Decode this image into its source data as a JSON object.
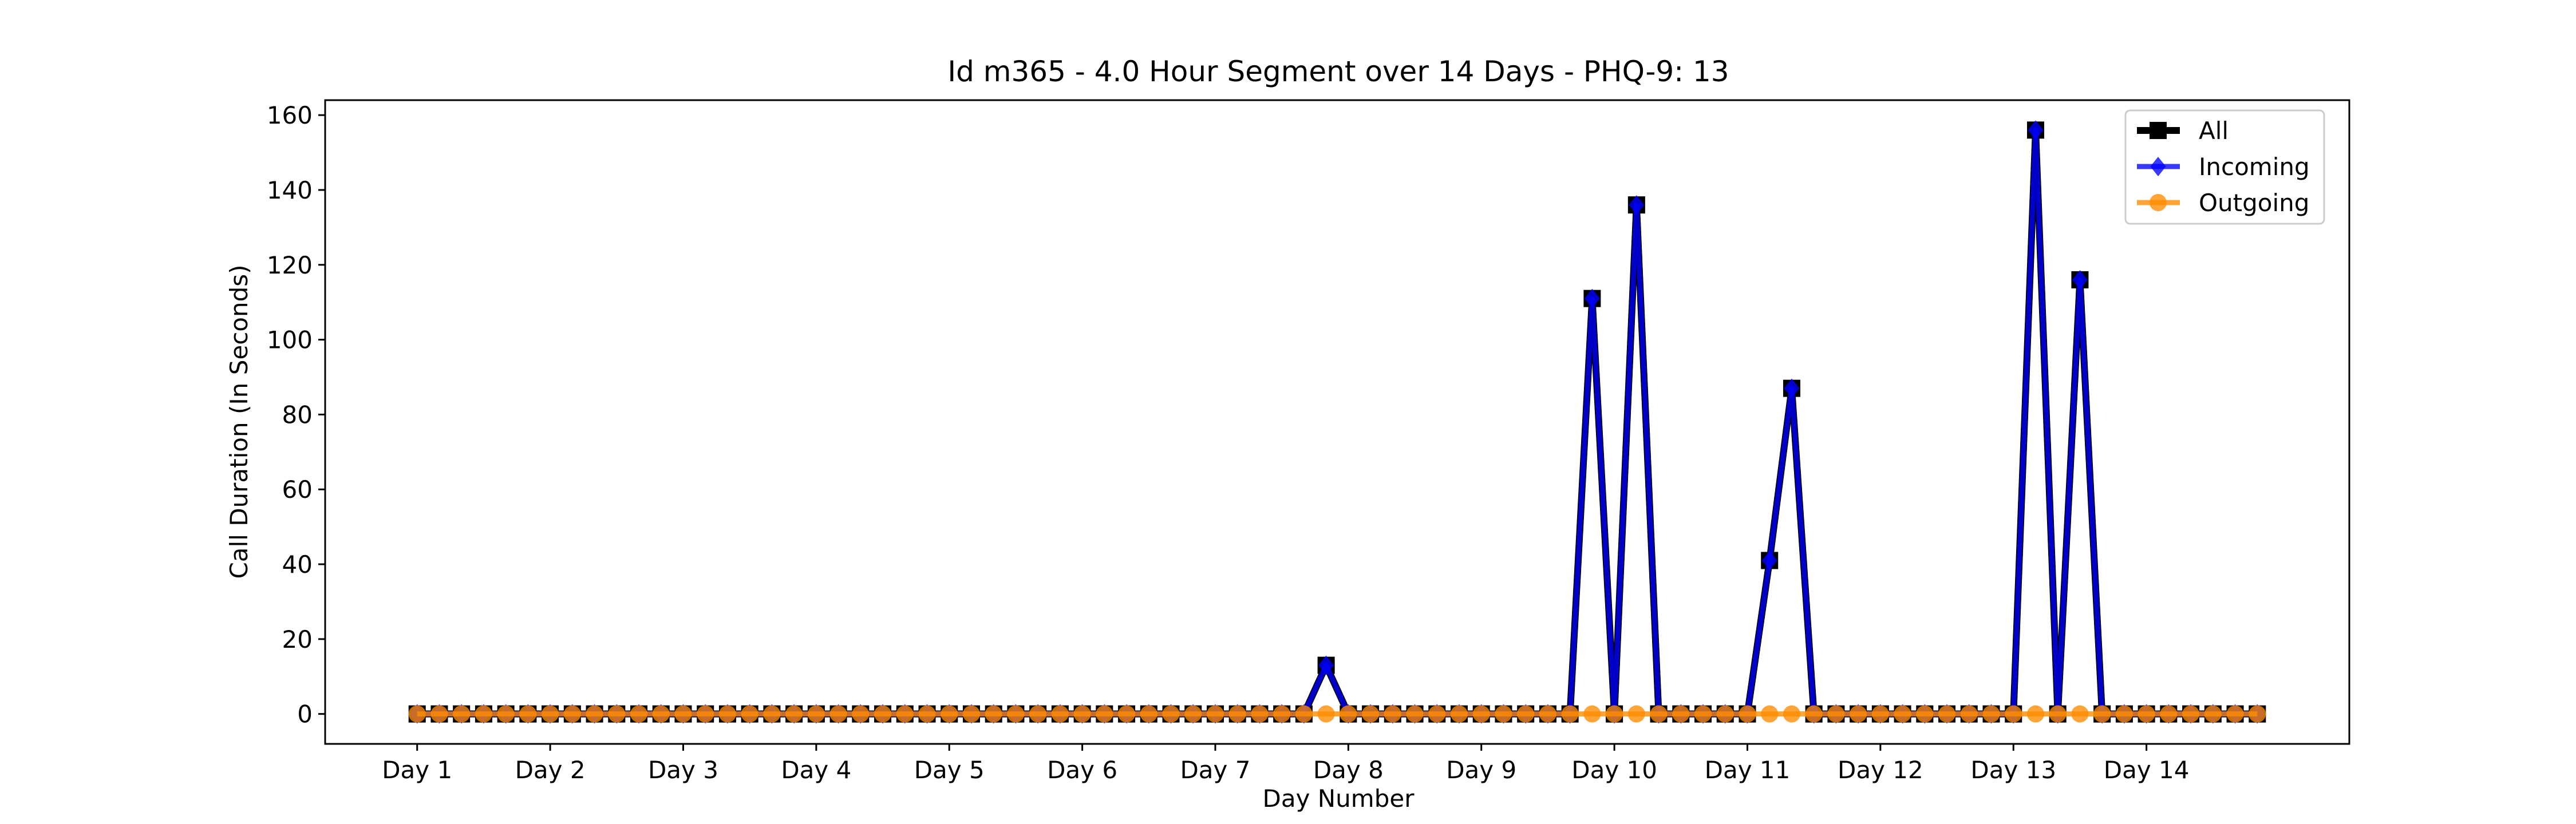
{
  "chart_data": {
    "type": "line",
    "title": "Id m365 - 4.0 Hour Segment over 14 Days - PHQ-9: 13",
    "xlabel": "Day Number",
    "ylabel": "Call Duration (In Seconds)",
    "xlim": [
      -4.15,
      87.15
    ],
    "ylim": [
      -8,
      164
    ],
    "yticks": [
      0,
      20,
      40,
      60,
      80,
      100,
      120,
      140,
      160
    ],
    "xticks": [
      {
        "x": 0,
        "label": "Day 1"
      },
      {
        "x": 6,
        "label": "Day 2"
      },
      {
        "x": 12,
        "label": "Day 3"
      },
      {
        "x": 18,
        "label": "Day 4"
      },
      {
        "x": 24,
        "label": "Day 5"
      },
      {
        "x": 30,
        "label": "Day 6"
      },
      {
        "x": 36,
        "label": "Day 7"
      },
      {
        "x": 42,
        "label": "Day 8"
      },
      {
        "x": 48,
        "label": "Day 9"
      },
      {
        "x": 54,
        "label": "Day 10"
      },
      {
        "x": 60,
        "label": "Day 11"
      },
      {
        "x": 66,
        "label": "Day 12"
      },
      {
        "x": 72,
        "label": "Day 13"
      },
      {
        "x": 78,
        "label": "Day 14"
      }
    ],
    "legend_position": "top-right",
    "series": [
      {
        "name": "All",
        "color": "#000000",
        "marker": "square",
        "values": [
          0,
          0,
          0,
          0,
          0,
          0,
          0,
          0,
          0,
          0,
          0,
          0,
          0,
          0,
          0,
          0,
          0,
          0,
          0,
          0,
          0,
          0,
          0,
          0,
          0,
          0,
          0,
          0,
          0,
          0,
          0,
          0,
          0,
          0,
          0,
          0,
          0,
          0,
          0,
          0,
          0,
          13,
          0,
          0,
          0,
          0,
          0,
          0,
          0,
          0,
          0,
          0,
          0,
          111,
          0,
          136,
          0,
          0,
          0,
          0,
          0,
          41,
          87,
          0,
          0,
          0,
          0,
          0,
          0,
          0,
          0,
          0,
          0,
          156,
          0,
          116,
          0,
          0,
          0,
          0,
          0,
          0,
          0,
          0
        ]
      },
      {
        "name": "Incoming",
        "color": "#0000ff",
        "marker": "diamond",
        "values": [
          0,
          0,
          0,
          0,
          0,
          0,
          0,
          0,
          0,
          0,
          0,
          0,
          0,
          0,
          0,
          0,
          0,
          0,
          0,
          0,
          0,
          0,
          0,
          0,
          0,
          0,
          0,
          0,
          0,
          0,
          0,
          0,
          0,
          0,
          0,
          0,
          0,
          0,
          0,
          0,
          0,
          13,
          0,
          0,
          0,
          0,
          0,
          0,
          0,
          0,
          0,
          0,
          0,
          111,
          0,
          136,
          0,
          0,
          0,
          0,
          0,
          41,
          87,
          0,
          0,
          0,
          0,
          0,
          0,
          0,
          0,
          0,
          0,
          156,
          0,
          116,
          0,
          0,
          0,
          0,
          0,
          0,
          0,
          0
        ]
      },
      {
        "name": "Outgoing",
        "color": "#ff8c00",
        "marker": "circle",
        "values": [
          0,
          0,
          0,
          0,
          0,
          0,
          0,
          0,
          0,
          0,
          0,
          0,
          0,
          0,
          0,
          0,
          0,
          0,
          0,
          0,
          0,
          0,
          0,
          0,
          0,
          0,
          0,
          0,
          0,
          0,
          0,
          0,
          0,
          0,
          0,
          0,
          0,
          0,
          0,
          0,
          0,
          0,
          0,
          0,
          0,
          0,
          0,
          0,
          0,
          0,
          0,
          0,
          0,
          0,
          0,
          0,
          0,
          0,
          0,
          0,
          0,
          0,
          0,
          0,
          0,
          0,
          0,
          0,
          0,
          0,
          0,
          0,
          0,
          0,
          0,
          0,
          0,
          0,
          0,
          0,
          0,
          0,
          0,
          0
        ]
      }
    ]
  }
}
